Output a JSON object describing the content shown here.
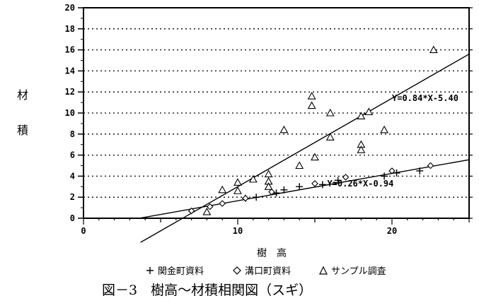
{
  "chart_data": {
    "type": "scatter",
    "title": "",
    "caption": "図－3　樹高～材積相関図（スギ）",
    "xlabel": "樹　高",
    "ylabel_chars": [
      "材",
      "積"
    ],
    "xlim": [
      0,
      25
    ],
    "ylim": [
      0,
      20
    ],
    "xticks": [
      0,
      10,
      20
    ],
    "yticks": [
      0,
      2,
      4,
      6,
      8,
      10,
      12,
      14,
      16,
      18,
      20
    ],
    "xtick_labels": [
      "0",
      "10",
      "20"
    ],
    "ytick_labels": [
      "0",
      "2",
      "4",
      "6",
      "8",
      "10",
      "12",
      "14",
      "16",
      "18",
      "20"
    ],
    "grid": "horizontal-dotted",
    "legend_position": "bottom",
    "series": [
      {
        "name": "関金町資料",
        "marker": "plus",
        "points": [
          [
            10.5,
            1.9
          ],
          [
            11.2,
            2.0
          ],
          [
            12.5,
            2.4
          ],
          [
            13.0,
            2.7
          ],
          [
            14.0,
            3.0
          ],
          [
            15.5,
            3.2
          ],
          [
            16.5,
            3.6
          ],
          [
            19.5,
            4.0
          ],
          [
            20.3,
            4.3
          ],
          [
            21.8,
            4.5
          ]
        ]
      },
      {
        "name": "溝口町資料",
        "marker": "diamond",
        "points": [
          [
            7.0,
            0.7
          ],
          [
            8.2,
            1.1
          ],
          [
            9.0,
            1.4
          ],
          [
            10.5,
            1.9
          ],
          [
            12.2,
            2.5
          ],
          [
            15.0,
            3.3
          ],
          [
            17.0,
            3.9
          ],
          [
            20.0,
            4.5
          ],
          [
            22.5,
            5.0
          ]
        ]
      },
      {
        "name": "サンプル調査",
        "marker": "triangle",
        "points": [
          [
            8.0,
            0.6
          ],
          [
            9.0,
            2.7
          ],
          [
            10.0,
            2.6
          ],
          [
            10.0,
            3.4
          ],
          [
            11.0,
            3.7
          ],
          [
            12.0,
            3.5
          ],
          [
            12.0,
            4.2
          ],
          [
            12.0,
            3.0
          ],
          [
            13.0,
            8.4
          ],
          [
            14.0,
            5.0
          ],
          [
            14.8,
            11.6
          ],
          [
            14.8,
            10.7
          ],
          [
            15.0,
            5.8
          ],
          [
            16.0,
            7.7
          ],
          [
            16.0,
            10.0
          ],
          [
            18.0,
            7.0
          ],
          [
            18.0,
            6.5
          ],
          [
            18.0,
            9.7
          ],
          [
            18.5,
            10.1
          ],
          [
            19.5,
            8.4
          ],
          [
            22.7,
            16.0
          ]
        ]
      }
    ],
    "regressions": [
      {
        "label": "Y=0.84*X-5.40",
        "slope": 0.84,
        "intercept": -5.4,
        "x_range": [
          3.7,
          25
        ]
      },
      {
        "label": "Y=0.26*X-0.94",
        "slope": 0.26,
        "intercept": -0.94,
        "x_range": [
          3.7,
          25
        ]
      }
    ],
    "regression_label_anchors": [
      [
        20.0,
        11.4
      ],
      [
        15.8,
        3.3
      ]
    ]
  }
}
